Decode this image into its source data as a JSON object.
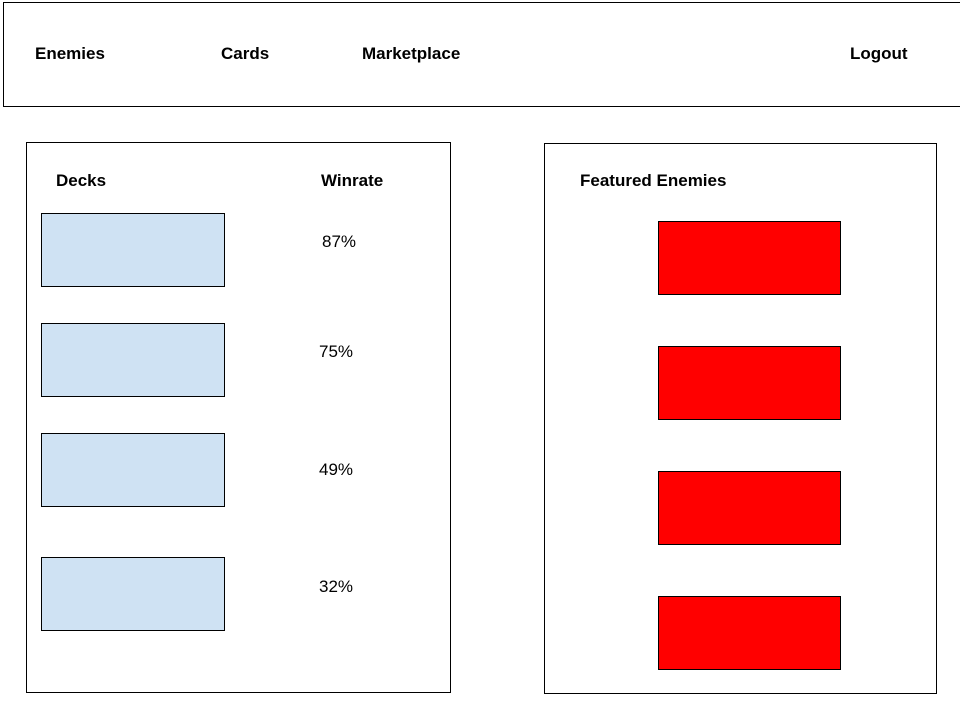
{
  "nav": {
    "enemies": "Enemies",
    "cards": "Cards",
    "marketplace": "Marketplace",
    "logout": "Logout"
  },
  "decks_panel": {
    "decks_heading": "Decks",
    "winrate_heading": "Winrate",
    "winrates": [
      "87%",
      "75%",
      "49%",
      "32%"
    ]
  },
  "featured_panel": {
    "heading": "Featured Enemies"
  },
  "colors": {
    "deck_slot": "#cfe2f3",
    "enemy_slot": "#ff0000"
  }
}
